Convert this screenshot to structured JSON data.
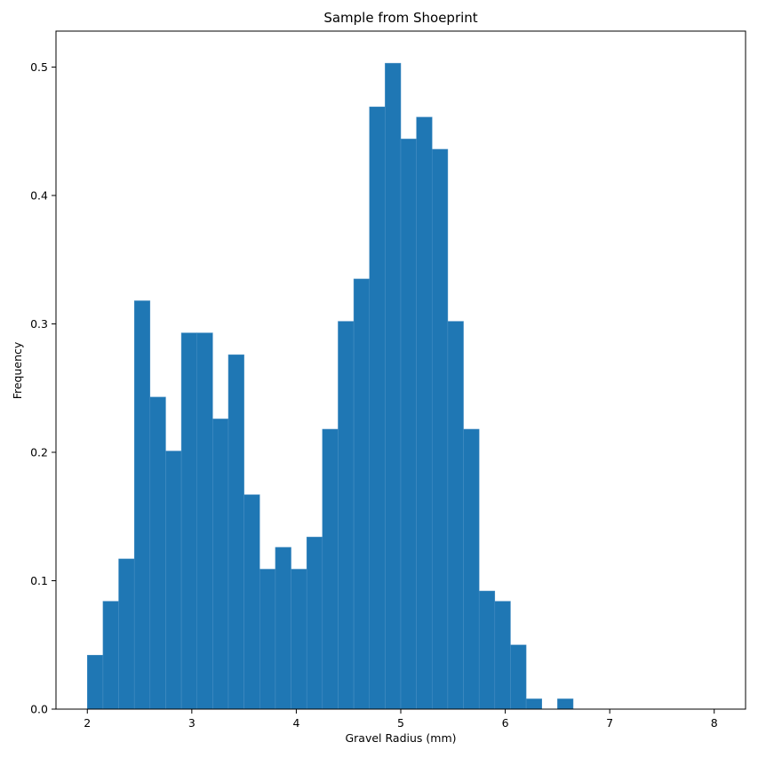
{
  "chart_data": {
    "type": "bar",
    "subtype": "histogram",
    "title": "Sample from Shoeprint",
    "xlabel": "Gravel Radius (mm)",
    "ylabel": "Frequency",
    "bin_start": 2.0,
    "bin_width": 0.15,
    "values": [
      0.042,
      0.084,
      0.117,
      0.318,
      0.243,
      0.201,
      0.293,
      0.293,
      0.226,
      0.276,
      0.167,
      0.109,
      0.126,
      0.109,
      0.134,
      0.218,
      0.302,
      0.335,
      0.469,
      0.503,
      0.444,
      0.461,
      0.436,
      0.302,
      0.218,
      0.092,
      0.084,
      0.05,
      0.008,
      0.0,
      0.008,
      0.0,
      0.0,
      0.0,
      0.0,
      0.0,
      0.0,
      0.0,
      0.0,
      0.0
    ],
    "xlim": [
      1.7,
      8.3
    ],
    "ylim": [
      0,
      0.528
    ],
    "xticks": [
      2,
      3,
      4,
      5,
      6,
      7,
      8
    ],
    "xtick_labels": [
      "2",
      "3",
      "4",
      "5",
      "6",
      "7",
      "8"
    ],
    "yticks": [
      0.0,
      0.1,
      0.2,
      0.3,
      0.4,
      0.5
    ],
    "ytick_labels": [
      "0.0",
      "0.1",
      "0.2",
      "0.3",
      "0.4",
      "0.5"
    ],
    "bar_color": "#1f77b4",
    "bar_edge_color": "#4a90c4",
    "grid": false,
    "legend": false
  }
}
